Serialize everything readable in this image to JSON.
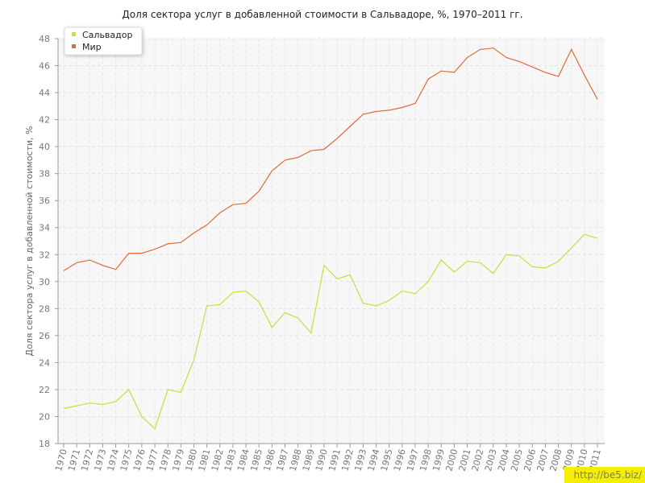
{
  "chart_data": {
    "type": "line",
    "title": "Доля сектора услуг в добавленной стоимости в Сальвадоре, %, 1970–2011 гг.",
    "ylabel": "Доля сектора услуг в добавленной стоимости, %",
    "xlabel": "",
    "ylim": [
      18,
      48
    ],
    "yticks": [
      18,
      20,
      22,
      24,
      26,
      28,
      30,
      32,
      34,
      36,
      38,
      40,
      42,
      44,
      46,
      48
    ],
    "grid": true,
    "legend": "top-left",
    "x": [
      1970,
      1971,
      1972,
      1973,
      1974,
      1975,
      1976,
      1977,
      1978,
      1979,
      1980,
      1981,
      1982,
      1983,
      1984,
      1985,
      1986,
      1987,
      1988,
      1989,
      1990,
      1991,
      1992,
      1993,
      1994,
      1995,
      1996,
      1997,
      1998,
      1999,
      2000,
      2001,
      2002,
      2003,
      2004,
      2005,
      2006,
      2007,
      2008,
      2009,
      2010,
      2011
    ],
    "series": [
      {
        "name": "Сальвадор",
        "color": "#c5df3e",
        "values": [
          20.6,
          20.8,
          21.0,
          20.9,
          21.1,
          22.0,
          20.0,
          19.1,
          22.0,
          21.8,
          24.2,
          28.2,
          28.3,
          29.2,
          29.3,
          28.5,
          26.6,
          27.7,
          27.3,
          26.2,
          31.2,
          30.2,
          30.5,
          28.4,
          28.2,
          28.6,
          29.3,
          29.1,
          30.0,
          31.6,
          30.7,
          31.5,
          31.4,
          30.6,
          32.0,
          31.9,
          31.1,
          31.0,
          31.5,
          32.5,
          33.5,
          33.2
        ]
      },
      {
        "name": "Мир",
        "color": "#e06a3a",
        "values": [
          30.8,
          31.4,
          31.6,
          31.2,
          30.9,
          32.1,
          32.1,
          32.4,
          32.8,
          32.9,
          33.6,
          34.2,
          35.1,
          35.7,
          35.8,
          36.7,
          38.2,
          39.0,
          39.2,
          39.7,
          39.8,
          40.6,
          41.5,
          42.4,
          42.6,
          42.7,
          42.9,
          43.2,
          45.0,
          45.6,
          45.5,
          46.6,
          47.2,
          47.3,
          46.6,
          46.3,
          45.9,
          45.5,
          45.2,
          47.2,
          45.3,
          43.5
        ]
      }
    ]
  },
  "watermark": "http://be5.biz/"
}
